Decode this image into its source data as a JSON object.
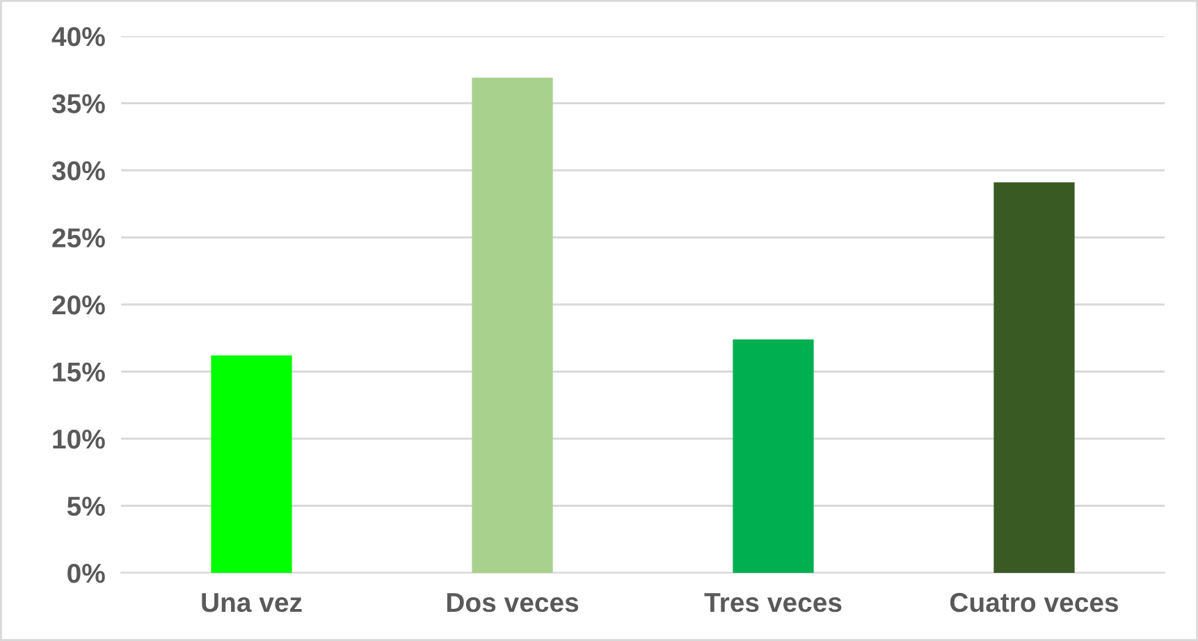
{
  "chart_data": {
    "type": "bar",
    "categories": [
      "Una vez",
      "Dos veces",
      "Tres veces",
      "Cuatro veces"
    ],
    "values": [
      16.2,
      36.9,
      17.4,
      29.1
    ],
    "colors": [
      "#00ff00",
      "#a9d18e",
      "#00b050",
      "#3a5a24"
    ],
    "ylim": [
      0,
      40
    ],
    "yticks": [
      {
        "value": 0,
        "label": "0%"
      },
      {
        "value": 5,
        "label": "5%"
      },
      {
        "value": 10,
        "label": "10%"
      },
      {
        "value": 15,
        "label": "15%"
      },
      {
        "value": 20,
        "label": "20%"
      },
      {
        "value": 25,
        "label": "25%"
      },
      {
        "value": 30,
        "label": "30%"
      },
      {
        "value": 35,
        "label": "35%"
      },
      {
        "value": 40,
        "label": "40%"
      }
    ],
    "grid": "y"
  }
}
